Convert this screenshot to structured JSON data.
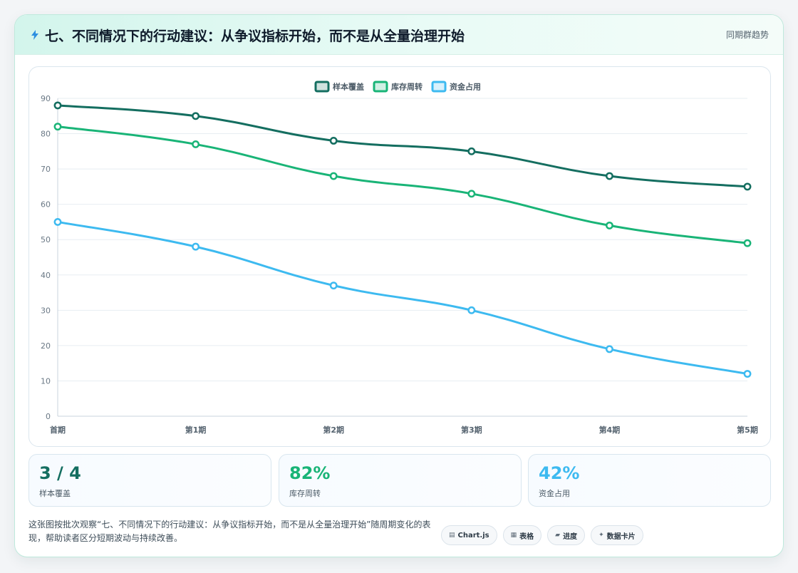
{
  "header": {
    "title": "七、不同情况下的行动建议：从争议指标开始，而不是从全量治理开始",
    "tag": "同期群趋势"
  },
  "chart_data": {
    "type": "line",
    "categories": [
      "首期",
      "第1期",
      "第2期",
      "第3期",
      "第4期",
      "第5期"
    ],
    "series": [
      {
        "name": "样本覆盖",
        "color": "#146e60",
        "values": [
          88,
          85,
          78,
          75,
          68,
          65
        ]
      },
      {
        "name": "库存周转",
        "color": "#19b477",
        "values": [
          82,
          77,
          68,
          63,
          54,
          49
        ]
      },
      {
        "name": "资金占用",
        "color": "#3dbaf0",
        "values": [
          55,
          48,
          37,
          30,
          19,
          12
        ]
      }
    ],
    "ylim": [
      0,
      90
    ],
    "yticks": [
      0,
      10,
      20,
      30,
      40,
      50,
      60,
      70,
      80,
      90
    ],
    "legend": "top-center",
    "grid": true
  },
  "stats": [
    {
      "value": "3 / 4",
      "label": "样本覆盖",
      "color": "#146e60"
    },
    {
      "value": "82%",
      "label": "库存周转",
      "color": "#19b477"
    },
    {
      "value": "42%",
      "label": "资金占用",
      "color": "#3dbaf0"
    }
  ],
  "description": "这张图按批次观察“七、不同情况下的行动建议：从争议指标开始，而不是从全量治理开始”随周期变化的表现，帮助读者区分短期波动与持续改善。",
  "chips": [
    {
      "icon": "chart-icon",
      "label": "Chart.js"
    },
    {
      "icon": "table-icon",
      "label": "表格"
    },
    {
      "icon": "progress-icon",
      "label": "进度"
    },
    {
      "icon": "sparkle-icon",
      "label": "数据卡片"
    }
  ]
}
